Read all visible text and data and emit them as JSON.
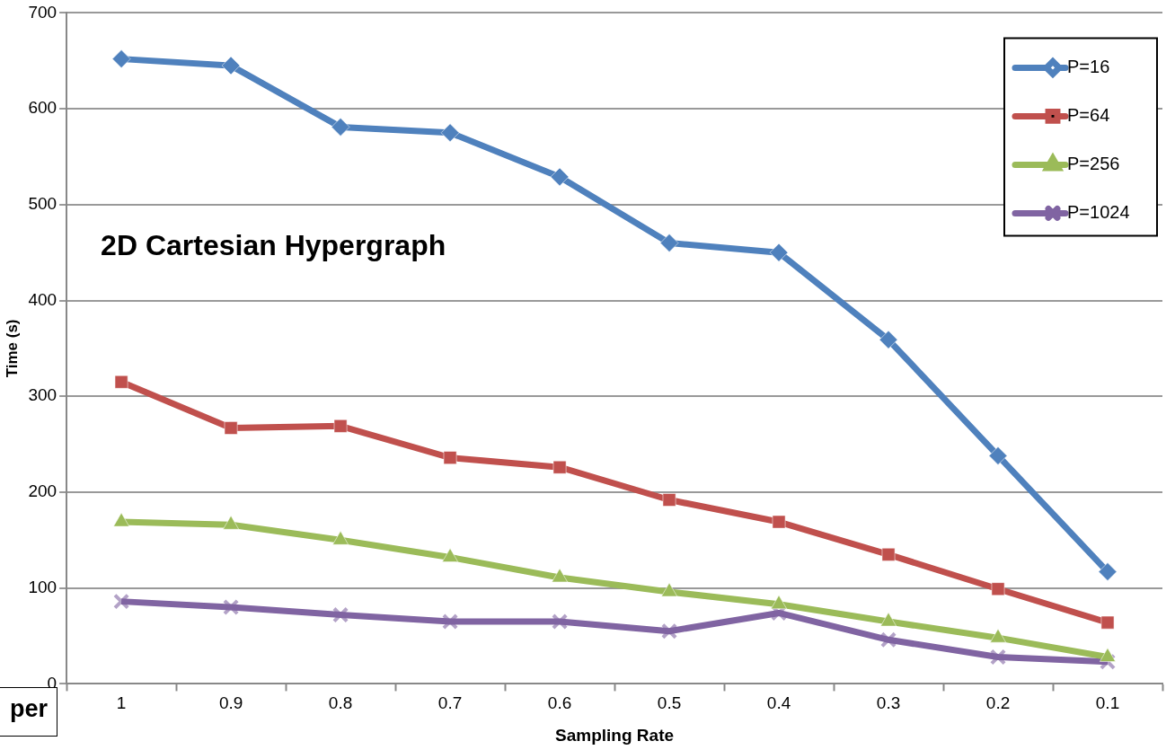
{
  "chart_data": {
    "type": "line",
    "title": "2D Cartesian Hypergraph",
    "xlabel": "Sampling Rate",
    "ylabel": "Time (s)",
    "categories": [
      "1",
      "0.9",
      "0.8",
      "0.7",
      "0.6",
      "0.5",
      "0.4",
      "0.3",
      "0.2",
      "0.1"
    ],
    "series": [
      {
        "name": "P=16",
        "color": "#4f81bd",
        "marker": "diamond",
        "values": [
          652,
          645,
          581,
          575,
          529,
          460,
          450,
          359,
          238,
          117
        ]
      },
      {
        "name": "P=64",
        "color": "#c0504d",
        "marker": "square",
        "values": [
          315,
          267,
          269,
          236,
          226,
          192,
          169,
          135,
          99,
          64
        ]
      },
      {
        "name": "P=256",
        "color": "#9bbb59",
        "marker": "triangle",
        "values": [
          169,
          166,
          150,
          132,
          111,
          96,
          83,
          65,
          48,
          28
        ]
      },
      {
        "name": "P=1024",
        "color": "#8064a2",
        "marker": "cross",
        "values": [
          86,
          80,
          72,
          65,
          65,
          55,
          74,
          46,
          28,
          23
        ]
      }
    ],
    "ylim": [
      0,
      700
    ],
    "yticks": [
      0,
      100,
      200,
      300,
      400,
      500,
      600,
      700
    ],
    "grid": "y",
    "legend": "top right",
    "annotations": [
      "per"
    ]
  }
}
